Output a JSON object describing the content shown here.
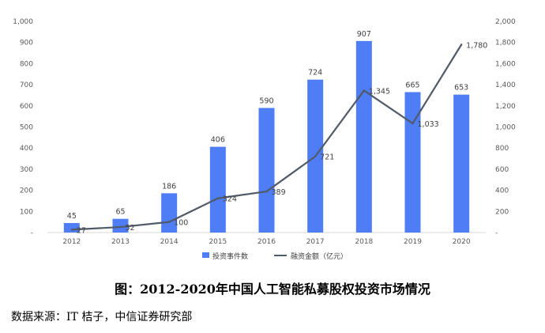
{
  "chart_data": {
    "type": "bar",
    "categories": [
      "2012",
      "2013",
      "2014",
      "2015",
      "2016",
      "2017",
      "2018",
      "2019",
      "2020"
    ],
    "series": [
      {
        "name": "投资事件数",
        "kind": "bar",
        "axis": "left",
        "color": "#4f7df5",
        "values": [
          45,
          65,
          186,
          406,
          590,
          724,
          907,
          665,
          653
        ],
        "labels": [
          "45",
          "65",
          "186",
          "406",
          "590",
          "724",
          "907",
          "665",
          "653"
        ]
      },
      {
        "name": "融资金额（亿元）",
        "kind": "line",
        "axis": "right",
        "color": "#505a68",
        "values": [
          27,
          52,
          100,
          324,
          389,
          721,
          1345,
          1033,
          1780
        ],
        "labels": [
          "27",
          "52",
          "100",
          "324",
          "389",
          "721",
          "1,345",
          "1,033",
          "1,780"
        ]
      }
    ],
    "left_axis": {
      "ylim": [
        0,
        1000
      ],
      "ticks": [
        "-",
        "100",
        "200",
        "300",
        "400",
        "500",
        "600",
        "700",
        "800",
        "900",
        "1,000"
      ]
    },
    "right_axis": {
      "ylim": [
        0,
        2000
      ],
      "ticks": [
        "-",
        "200",
        "400",
        "600",
        "800",
        "1,000",
        "1,200",
        "1,400",
        "1,600",
        "1,800",
        "2,000"
      ]
    },
    "legend_position": "bottom"
  },
  "caption": "图：2012-2020年中国人工智能私募股权投资市场情况",
  "source": "数据来源：IT 桔子，中信证券研究部"
}
